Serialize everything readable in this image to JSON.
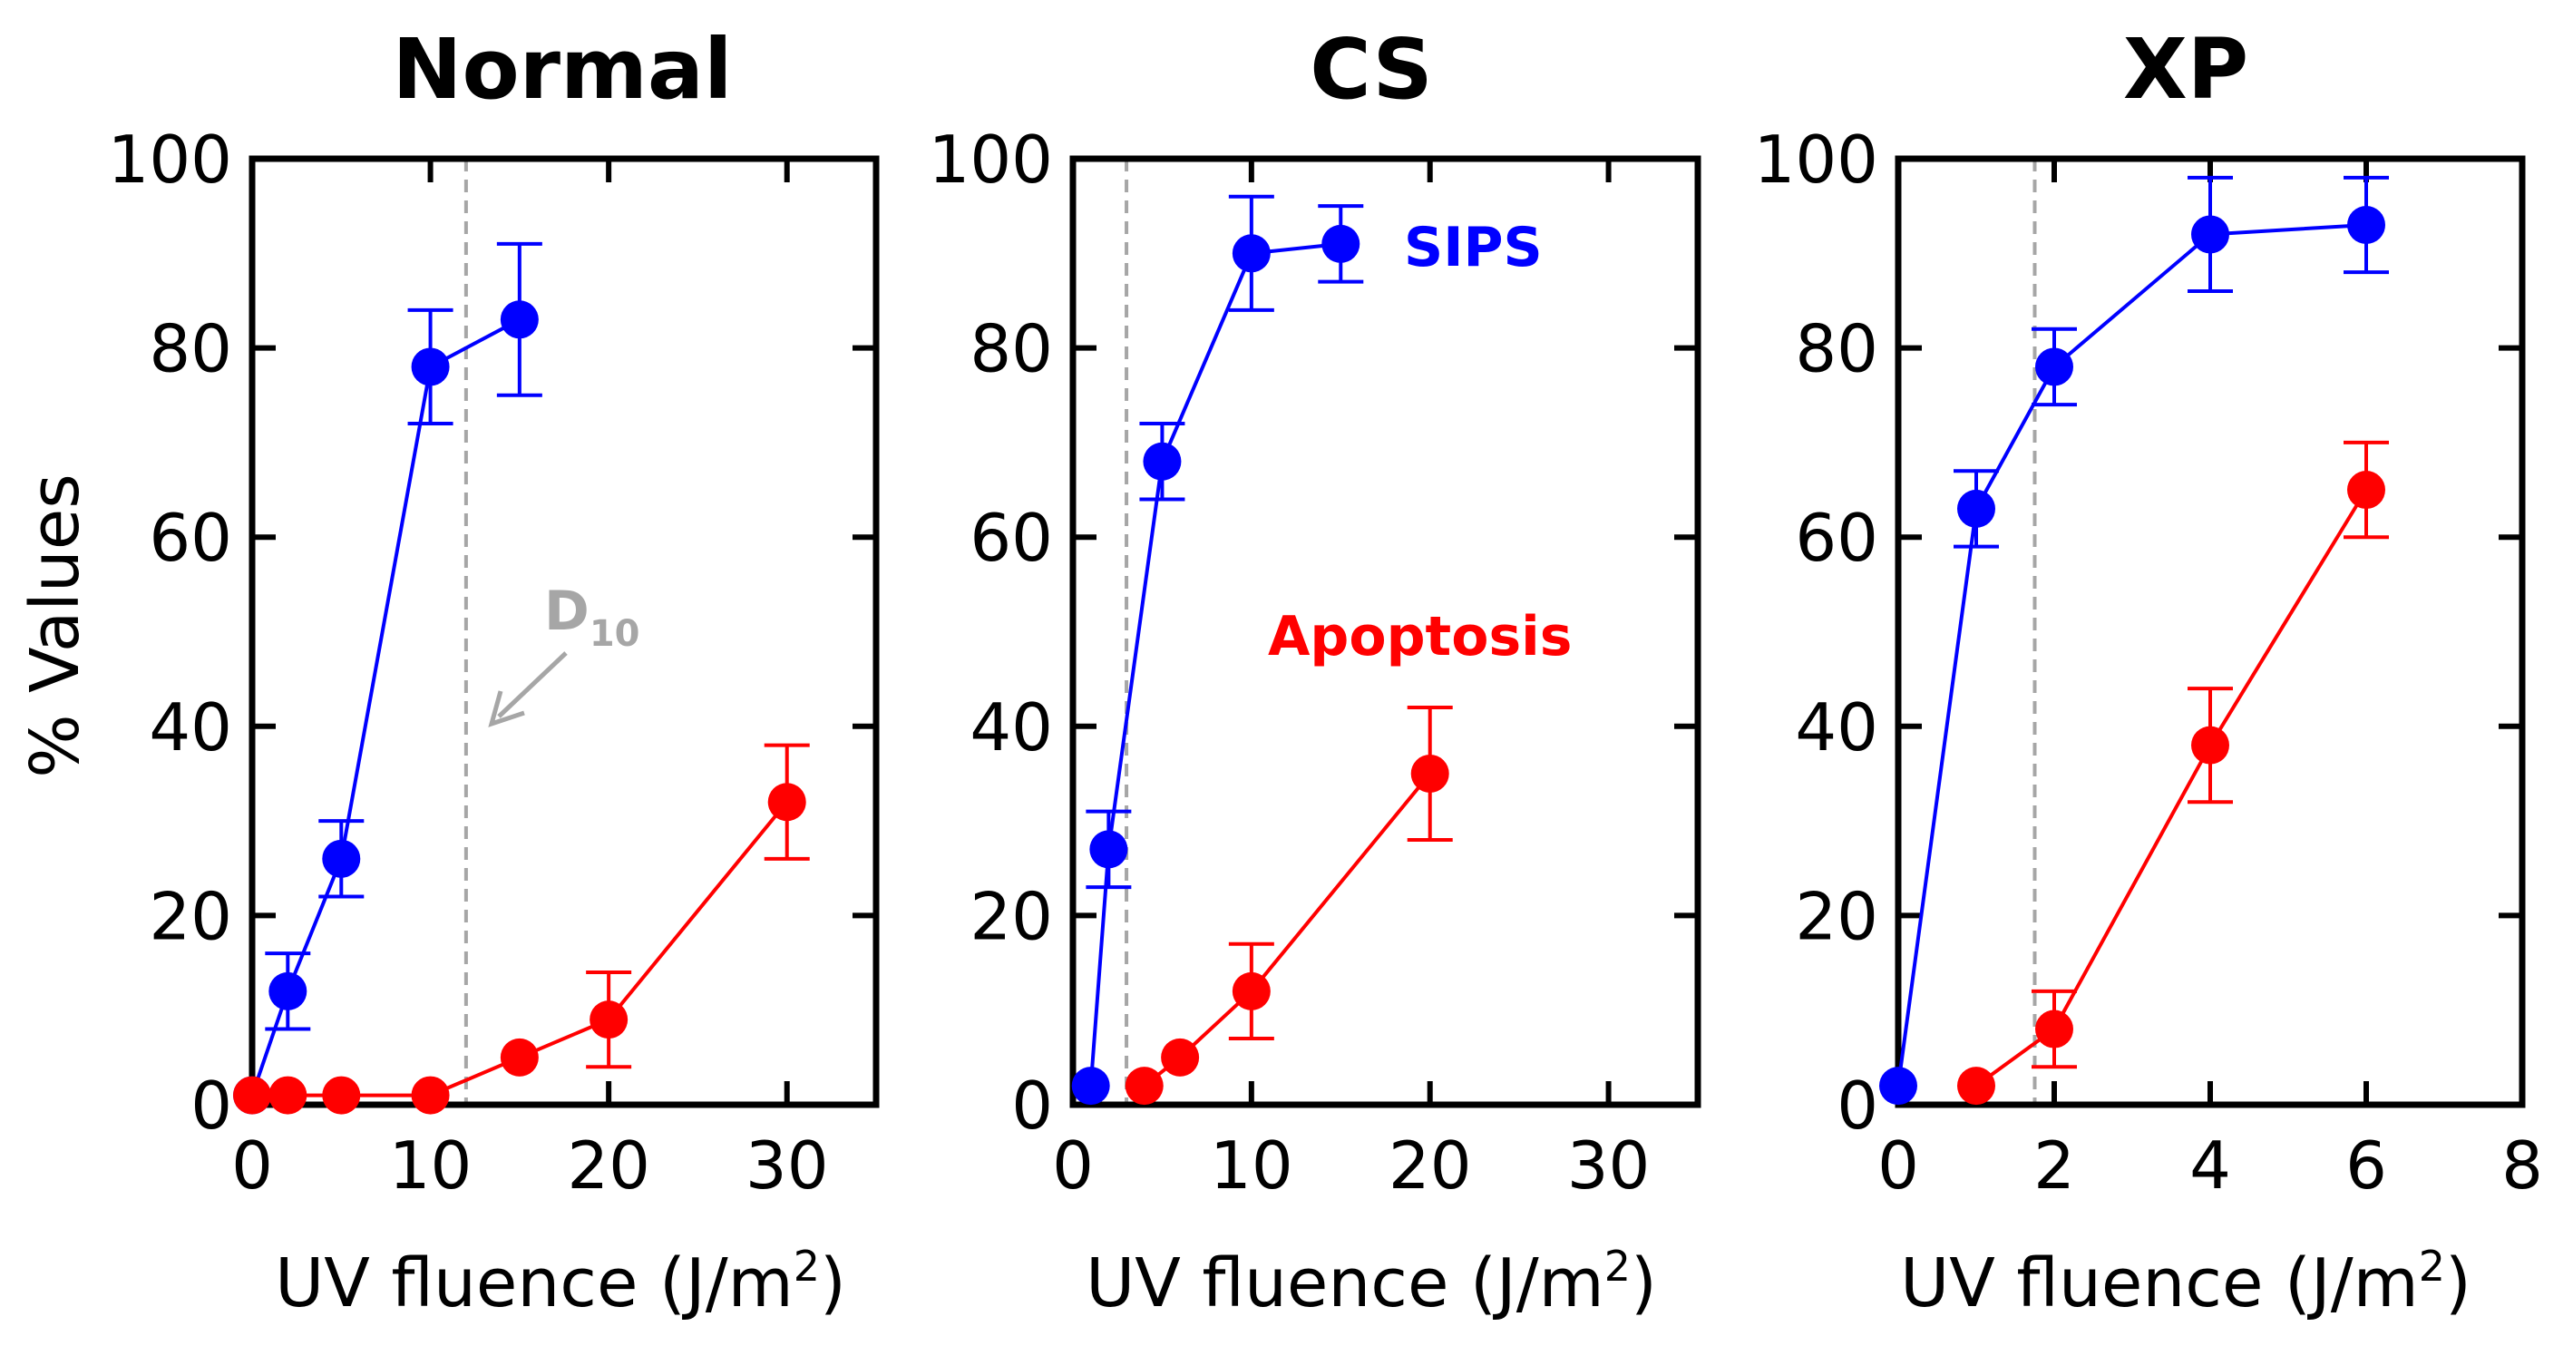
{
  "figure": {
    "ylabel": "% Values",
    "colors": {
      "sips": "#0000ff",
      "apoptosis": "#ff0000",
      "d10": "#a6a6a6",
      "axis": "#000000"
    }
  },
  "chart_data": [
    {
      "type": "scatter",
      "title": "Normal",
      "xlabel": "UV fluence (J/m2)",
      "xlabel_main": "UV fluence (J/m",
      "xlabel_sup": "2",
      "xlabel_close": ")",
      "ylabel": "% Values",
      "xlim": [
        0,
        35
      ],
      "ylim": [
        0,
        100
      ],
      "xticks": [
        0,
        10,
        20,
        30
      ],
      "yticks": [
        0,
        20,
        40,
        60,
        80,
        100
      ],
      "d10": 12,
      "annotations": [
        {
          "text": "D",
          "subscript": "10",
          "points_to": [
            12,
            40
          ]
        }
      ],
      "series": [
        {
          "name": "SIPS",
          "x": [
            0,
            2,
            5,
            10,
            15
          ],
          "y": [
            1,
            12,
            26,
            78,
            83
          ],
          "err": [
            0,
            4,
            4,
            6,
            8
          ]
        },
        {
          "name": "Apoptosis",
          "x": [
            0,
            2,
            5,
            10,
            15,
            20,
            30
          ],
          "y": [
            1,
            1,
            1,
            1,
            5,
            9,
            32
          ],
          "err": [
            0,
            0,
            0,
            0,
            0,
            5,
            6
          ]
        }
      ]
    },
    {
      "type": "scatter",
      "title": "CS",
      "xlabel": "UV fluence (J/m2)",
      "xlabel_main": "UV fluence (J/m",
      "xlabel_sup": "2",
      "xlabel_close": ")",
      "xlim": [
        0,
        35
      ],
      "ylim": [
        0,
        100
      ],
      "xticks": [
        0,
        10,
        20,
        30
      ],
      "yticks": [
        0,
        20,
        40,
        60,
        80,
        100
      ],
      "d10": 3,
      "legend_labels": {
        "sips": "SIPS",
        "apoptosis": "Apoptosis"
      },
      "series": [
        {
          "name": "SIPS",
          "x": [
            1,
            2,
            5,
            10,
            15
          ],
          "y": [
            2,
            27,
            68,
            90,
            91
          ],
          "err": [
            0,
            4,
            4,
            6,
            4
          ]
        },
        {
          "name": "Apoptosis",
          "x": [
            4,
            6,
            10,
            20
          ],
          "y": [
            2,
            5,
            12,
            35
          ],
          "err": [
            0,
            0,
            5,
            7
          ]
        }
      ]
    },
    {
      "type": "scatter",
      "title": "XP",
      "xlabel": "UV fluence (J/m2)",
      "xlabel_main": "UV fluence (J/m",
      "xlabel_sup": "2",
      "xlabel_close": ")",
      "xlim": [
        0,
        8
      ],
      "ylim": [
        0,
        100
      ],
      "xticks": [
        0,
        2,
        4,
        6,
        8
      ],
      "yticks": [
        0,
        20,
        40,
        60,
        80,
        100
      ],
      "d10": 1.75,
      "series": [
        {
          "name": "SIPS",
          "x": [
            0,
            1,
            2,
            4,
            6
          ],
          "y": [
            2,
            63,
            78,
            92,
            93
          ],
          "err": [
            0,
            4,
            4,
            6,
            5
          ]
        },
        {
          "name": "Apoptosis",
          "x": [
            1,
            2,
            4,
            6
          ],
          "y": [
            2,
            8,
            38,
            65
          ],
          "err": [
            0,
            4,
            6,
            5
          ]
        }
      ]
    }
  ]
}
